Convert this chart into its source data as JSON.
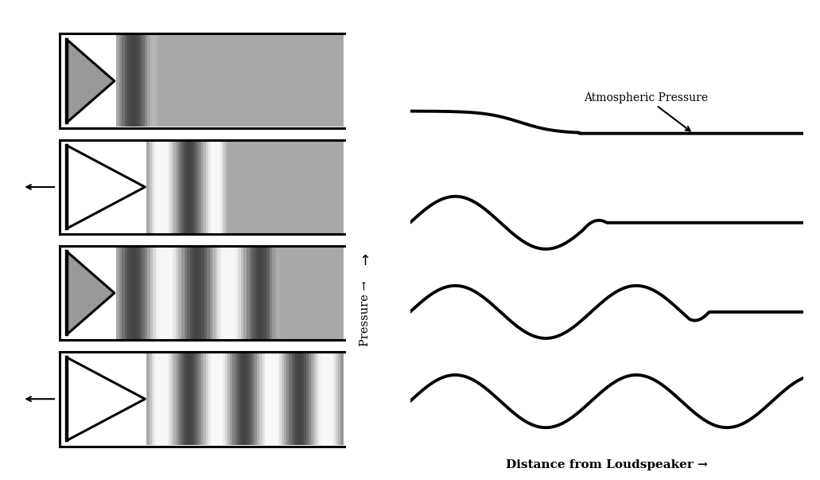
{
  "bg_color": "#a8a8a8",
  "tube_bg": "#a8a8a8",
  "white": "#ffffff",
  "black": "#000000",
  "fig_width": 10.31,
  "fig_height": 6.03,
  "pressure_label": "Pressure →",
  "distance_label": "Distance from Loudspeaker →",
  "atm_label": "Atmospheric Pressure",
  "wave_lw": 2.8,
  "tube_lw": 2.2,
  "cone_lw": 2.2,
  "snap_wave_phases": [
    0.0,
    0.5,
    1.0,
    1.5
  ],
  "snap_wave_fronts": [
    0.18,
    0.42,
    0.72,
    1.1
  ],
  "wavelength": 0.28,
  "snap_displacements": [
    0.0,
    0.09,
    0.0,
    0.09
  ],
  "arrow_snaps": [
    1,
    3
  ]
}
